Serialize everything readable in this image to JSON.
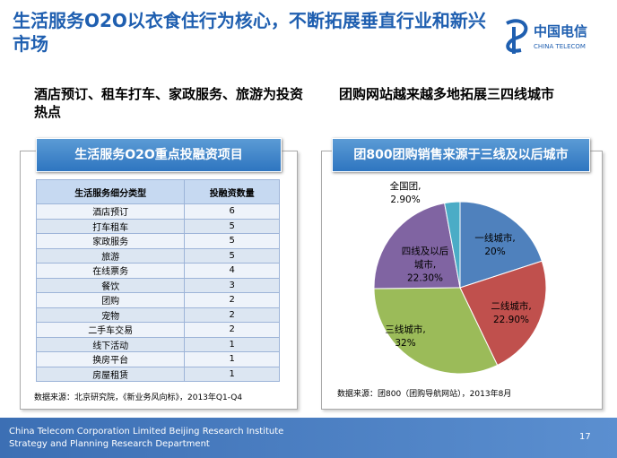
{
  "header": {
    "title": "生活服务O2O以衣食住行为核心，不断拓展垂直行业和新兴市场",
    "logo_cn": "中国电信",
    "logo_en": "CHINA TELECOM"
  },
  "left": {
    "heading": "酒店预订、租车打车、家政服务、旅游为投资热点",
    "panel_title": "生活服务O2O重点投融资项目",
    "table": {
      "columns": [
        "生活服务细分类型",
        "投融资数量"
      ],
      "rows": [
        [
          "酒店预订",
          6
        ],
        [
          "打车租车",
          5
        ],
        [
          "家政服务",
          5
        ],
        [
          "旅游",
          5
        ],
        [
          "在线票务",
          4
        ],
        [
          "餐饮",
          3
        ],
        [
          "团购",
          2
        ],
        [
          "宠物",
          2
        ],
        [
          "二手车交易",
          2
        ],
        [
          "线下活动",
          1
        ],
        [
          "换房平台",
          1
        ],
        [
          "房屋租赁",
          1
        ]
      ]
    },
    "source": "数据来源：北京研究院，《新业务风向标》，2013年Q1-Q4"
  },
  "right": {
    "heading": "团购网站越来越多地拓展三四线城市",
    "source": "数据来源：团800（团购导航网站），2013年8月"
  },
  "chart_data": {
    "type": "pie",
    "title": "团800团购销售来源于三线及以后城市",
    "categories": [
      "一线城市,",
      "二线城市,",
      "三线城市,",
      "四线及以后城市,",
      "全国团,"
    ],
    "values": [
      20,
      22.9,
      32,
      22.3,
      2.9
    ],
    "value_labels": [
      "20%",
      "22.90%",
      "32%",
      "22.30%",
      "2.90%"
    ],
    "colors": [
      "#4f81bd",
      "#c0504d",
      "#9bbb59",
      "#8064a2",
      "#4bacc6"
    ]
  },
  "footer": {
    "line1": "China Telecom Corporation Limited Beijing Research Institute",
    "line2": "Strategy and Planning Research Department",
    "page": "17"
  }
}
